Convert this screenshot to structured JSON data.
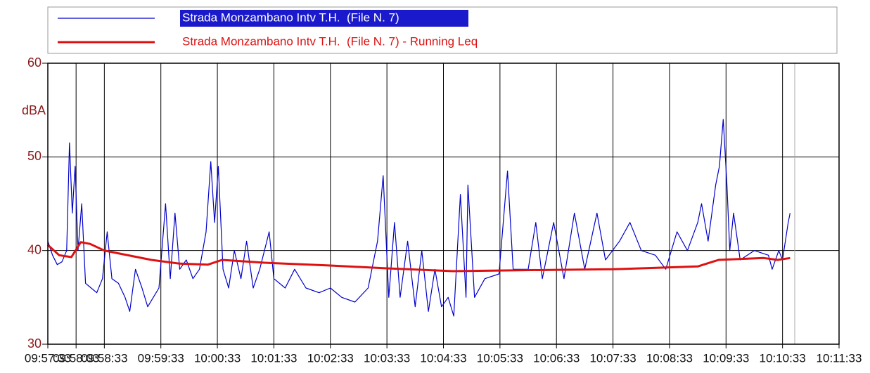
{
  "chart_data": {
    "type": "line",
    "ylabel": "dBA",
    "xlim": [
      "09:57:33",
      "10:11:33"
    ],
    "xticks": [
      "09:57:33",
      "09:58:03",
      "09:58:33",
      "09:59:33",
      "10:00:33",
      "10:01:33",
      "10:02:33",
      "10:03:33",
      "10:04:33",
      "10:05:33",
      "10:06:33",
      "10:07:33",
      "10:08:33",
      "10:09:33",
      "10:10:33",
      "10:11:33"
    ],
    "ylim": [
      30,
      60
    ],
    "yticks": [
      30,
      40,
      50,
      60
    ],
    "grid": true,
    "legend": "top",
    "series": [
      {
        "name": "Strada Monzambano Intv T.H.  (File N. 7)",
        "color": "#0000cc",
        "x": [
          "09:57:33",
          "09:57:38",
          "09:57:43",
          "09:57:48",
          "09:57:53",
          "09:57:56",
          "09:57:59",
          "09:58:02",
          "09:58:05",
          "09:58:09",
          "09:58:13",
          "09:58:19",
          "09:58:25",
          "09:58:31",
          "09:58:36",
          "09:58:41",
          "09:58:48",
          "09:58:55",
          "09:59:00",
          "09:59:06",
          "09:59:13",
          "09:59:19",
          "09:59:25",
          "09:59:31",
          "09:59:38",
          "09:59:43",
          "09:59:48",
          "09:59:53",
          "10:00:00",
          "10:00:07",
          "10:00:14",
          "10:00:21",
          "10:00:26",
          "10:00:30",
          "10:00:34",
          "10:00:39",
          "10:00:45",
          "10:00:51",
          "10:00:58",
          "10:01:04",
          "10:01:11",
          "10:01:18",
          "10:01:28",
          "10:01:33",
          "10:01:45",
          "10:01:55",
          "10:02:07",
          "10:02:21",
          "10:02:33",
          "10:02:45",
          "10:02:59",
          "10:03:13",
          "10:03:23",
          "10:03:29",
          "10:03:35",
          "10:03:41",
          "10:03:47",
          "10:03:55",
          "10:04:03",
          "10:04:10",
          "10:04:17",
          "10:04:24",
          "10:04:31",
          "10:04:38",
          "10:04:44",
          "10:04:51",
          "10:04:57",
          "10:04:59",
          "10:05:06",
          "10:05:17",
          "10:05:32",
          "10:05:41",
          "10:05:47",
          "10:06:03",
          "10:06:11",
          "10:06:18",
          "10:06:30",
          "10:06:41",
          "10:06:52",
          "10:07:03",
          "10:07:16",
          "10:07:25",
          "10:07:40",
          "10:07:51",
          "10:08:03",
          "10:08:18",
          "10:08:29",
          "10:08:41",
          "10:08:52",
          "10:09:03",
          "10:09:07",
          "10:09:14",
          "10:09:22",
          "10:09:26",
          "10:09:30",
          "10:09:34",
          "10:09:37",
          "10:09:41",
          "10:09:48",
          "10:10:03",
          "10:10:18",
          "10:10:22",
          "10:10:29",
          "10:10:33",
          "10:10:39",
          "10:10:41"
        ],
        "values": [
          41,
          39.5,
          38.5,
          38.8,
          40,
          51.5,
          44,
          49,
          40,
          45,
          36.5,
          36,
          35.5,
          37,
          42,
          37,
          36.5,
          35,
          33.5,
          38,
          36,
          34,
          35,
          36,
          45,
          37,
          44,
          38,
          39,
          37,
          38,
          42,
          49.5,
          43,
          49,
          38,
          36,
          40,
          37,
          41,
          36,
          38,
          42,
          37,
          36,
          38,
          36,
          35.5,
          36,
          35,
          34.5,
          36,
          41,
          48,
          35,
          43,
          35,
          41,
          34,
          40,
          33.5,
          38,
          34,
          35,
          33,
          46,
          35,
          47,
          35,
          37,
          37.5,
          48.5,
          38,
          38,
          43,
          37,
          43,
          37,
          44,
          38,
          44,
          39,
          41,
          43,
          40,
          39.5,
          38,
          42,
          40,
          43,
          45,
          41,
          47,
          49,
          54,
          47,
          40,
          44,
          39,
          40,
          39.5,
          38,
          40,
          39,
          43,
          44
        ]
      },
      {
        "name": "Strada Monzambano Intv T.H.  (File N. 7) - Running Leq",
        "color": "#dd1111",
        "x": [
          "09:57:33",
          "09:57:45",
          "09:57:58",
          "09:58:08",
          "09:58:18",
          "09:58:33",
          "09:58:53",
          "09:59:23",
          "09:59:53",
          "10:00:23",
          "10:00:38",
          "10:01:23",
          "10:02:33",
          "10:03:33",
          "10:04:43",
          "10:05:53",
          "10:07:33",
          "10:09:03",
          "10:09:25",
          "10:10:13",
          "10:10:28",
          "10:10:41"
        ],
        "values": [
          40.6,
          39.5,
          39.3,
          40.9,
          40.7,
          40,
          39.6,
          39,
          38.6,
          38.5,
          39,
          38.7,
          38.4,
          38.1,
          37.8,
          37.9,
          38,
          38.3,
          39,
          39.2,
          39,
          39.2
        ]
      }
    ]
  }
}
